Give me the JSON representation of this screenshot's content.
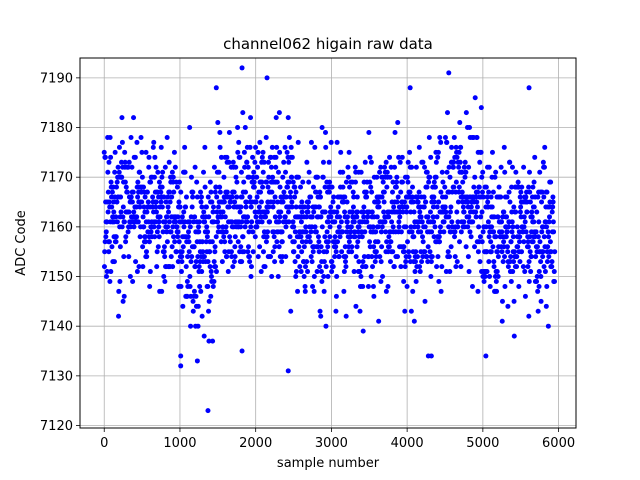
{
  "chart_data": {
    "type": "scatter",
    "title": "channel062 higain raw data",
    "xlabel": "sample number",
    "ylabel": "ADC Code",
    "xlim": [
      -320,
      6230
    ],
    "ylim": [
      7119.5,
      7194
    ],
    "xticks": [
      0,
      1000,
      2000,
      3000,
      4000,
      5000,
      6000
    ],
    "yticks": [
      7120,
      7130,
      7140,
      7150,
      7160,
      7170,
      7180,
      7190
    ],
    "grid": true,
    "marker_color": "#0000ff",
    "n_samples": 5950,
    "series": [
      {
        "values_note_hidden": "",
        "baseline_by_segment": [
          {
            "x": [
              0,
              1000
            ],
            "mean": 7164
          },
          {
            "x": [
              1000,
              1500
            ],
            "mean": 7158
          },
          {
            "x": [
              1500,
              2500
            ],
            "mean": 7164
          },
          {
            "x": [
              2500,
              3500
            ],
            "mean": 7161
          },
          {
            "x": [
              3500,
              4500
            ],
            "mean": 7162
          },
          {
            "x": [
              4500,
              5000
            ],
            "mean": 7166
          },
          {
            "x": [
              5000,
              5950
            ],
            "mean": 7159
          }
        ],
        "typical_range": [
          7145,
          7185
        ],
        "outliers": [
          {
            "x": 1370,
            "y": 7123
          },
          {
            "x": 2430,
            "y": 7131
          },
          {
            "x": 1010,
            "y": 7132
          },
          {
            "x": 1230,
            "y": 7133
          },
          {
            "x": 1010,
            "y": 7134
          },
          {
            "x": 1820,
            "y": 7135
          },
          {
            "x": 4280,
            "y": 7134
          },
          {
            "x": 4320,
            "y": 7134
          },
          {
            "x": 5040,
            "y": 7134
          },
          {
            "x": 1820,
            "y": 7192
          },
          {
            "x": 2150,
            "y": 7190
          },
          {
            "x": 4550,
            "y": 7191
          },
          {
            "x": 4040,
            "y": 7188
          },
          {
            "x": 1480,
            "y": 7188
          },
          {
            "x": 5610,
            "y": 7188
          }
        ]
      }
    ]
  }
}
